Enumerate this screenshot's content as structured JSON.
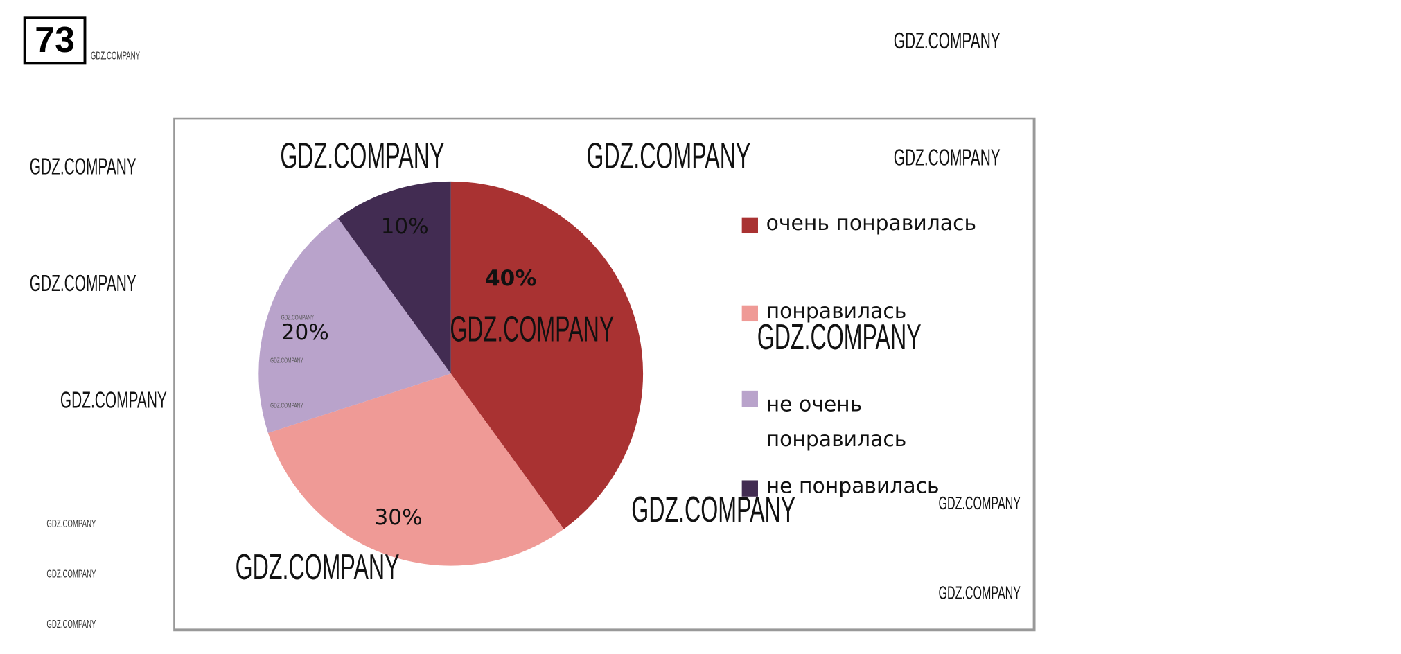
{
  "page_number": "73",
  "watermark": "GDZ.COMPANY",
  "chart_data": {
    "type": "pie",
    "slices": [
      {
        "label": "очень понравилась",
        "value": 40,
        "data_label": "40%",
        "color": "#a93232"
      },
      {
        "label": "понравилась",
        "value": 30,
        "data_label": "30%",
        "color": "#ef9a96"
      },
      {
        "label": "не очень понравилась",
        "value": 20,
        "data_label": "20%",
        "color": "#b9a3cb"
      },
      {
        "label": "не понравилась",
        "value": 10,
        "data_label": "10%",
        "color": "#422c52"
      }
    ],
    "legend_lines": [
      [
        "очень понравилась"
      ],
      [
        "понравилась"
      ],
      [
        "не очень",
        "понравилась"
      ],
      [
        "не понравилась"
      ]
    ],
    "legend_position": "right",
    "start_angle": "top, clockwise"
  }
}
